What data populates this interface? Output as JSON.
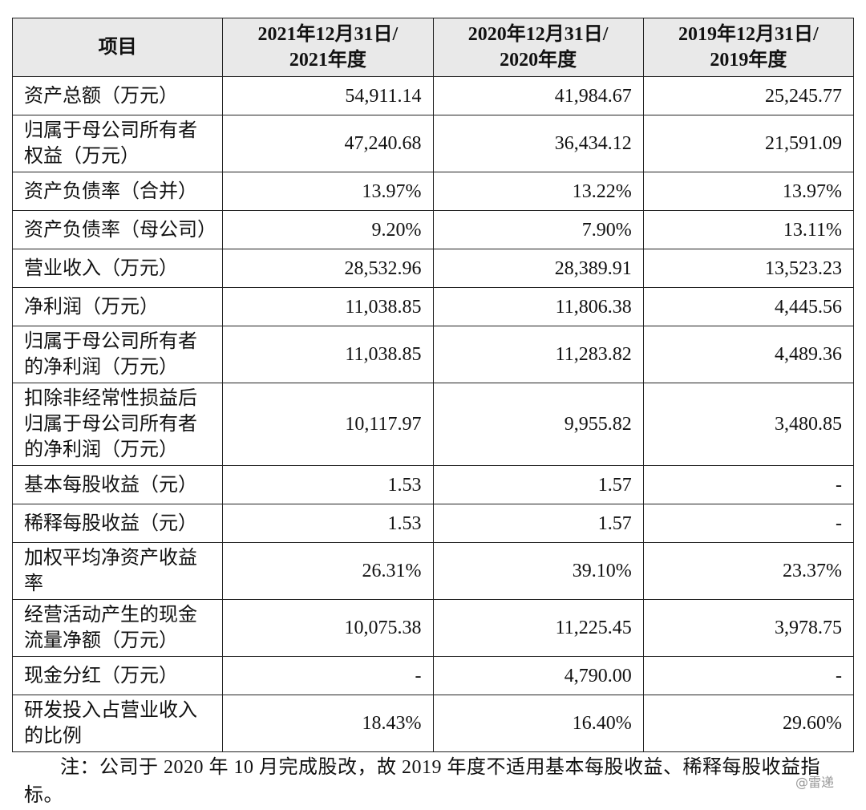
{
  "table": {
    "header": [
      [
        "项目"
      ],
      [
        "2021年12月31日/",
        "2021年度"
      ],
      [
        "2020年12月31日/",
        "2020年度"
      ],
      [
        "2019年12月31日/",
        "2019年度"
      ]
    ],
    "rows": [
      {
        "label": [
          "资产总额（万元）"
        ],
        "values": [
          "54,911.14",
          "41,984.67",
          "25,245.77"
        ]
      },
      {
        "label": [
          "归属于母公司所有者",
          "权益（万元）"
        ],
        "values": [
          "47,240.68",
          "36,434.12",
          "21,591.09"
        ]
      },
      {
        "label": [
          "资产负债率（合并）"
        ],
        "values": [
          "13.97%",
          "13.22%",
          "13.97%"
        ]
      },
      {
        "label": [
          "资产负债率（母公司）"
        ],
        "values": [
          "9.20%",
          "7.90%",
          "13.11%"
        ]
      },
      {
        "label": [
          "营业收入（万元）"
        ],
        "values": [
          "28,532.96",
          "28,389.91",
          "13,523.23"
        ]
      },
      {
        "label": [
          "净利润（万元）"
        ],
        "values": [
          "11,038.85",
          "11,806.38",
          "4,445.56"
        ]
      },
      {
        "label": [
          "归属于母公司所有者",
          "的净利润（万元）"
        ],
        "values": [
          "11,038.85",
          "11,283.82",
          "4,489.36"
        ]
      },
      {
        "label": [
          "扣除非经常性损益后",
          "归属于母公司所有者",
          "的净利润（万元）"
        ],
        "values": [
          "10,117.97",
          "9,955.82",
          "3,480.85"
        ]
      },
      {
        "label": [
          "基本每股收益（元）"
        ],
        "values": [
          "1.53",
          "1.57",
          "-"
        ]
      },
      {
        "label": [
          "稀释每股收益（元）"
        ],
        "values": [
          "1.53",
          "1.57",
          "-"
        ]
      },
      {
        "label": [
          "加权平均净资产收益",
          "率"
        ],
        "values": [
          "26.31%",
          "39.10%",
          "23.37%"
        ]
      },
      {
        "label": [
          "经营活动产生的现金",
          "流量净额（万元）"
        ],
        "values": [
          "10,075.38",
          "11,225.45",
          "3,978.75"
        ]
      },
      {
        "label": [
          "现金分红（万元）"
        ],
        "values": [
          "-",
          "4,790.00",
          "-"
        ]
      },
      {
        "label": [
          "研发投入占营业收入",
          "的比例"
        ],
        "values": [
          "18.43%",
          "16.40%",
          "29.60%"
        ]
      }
    ]
  },
  "note": "注：公司于 2020 年 10 月完成股改，故 2019 年度不适用基本每股收益、稀释每股收益指标。",
  "watermark": "@雷递"
}
